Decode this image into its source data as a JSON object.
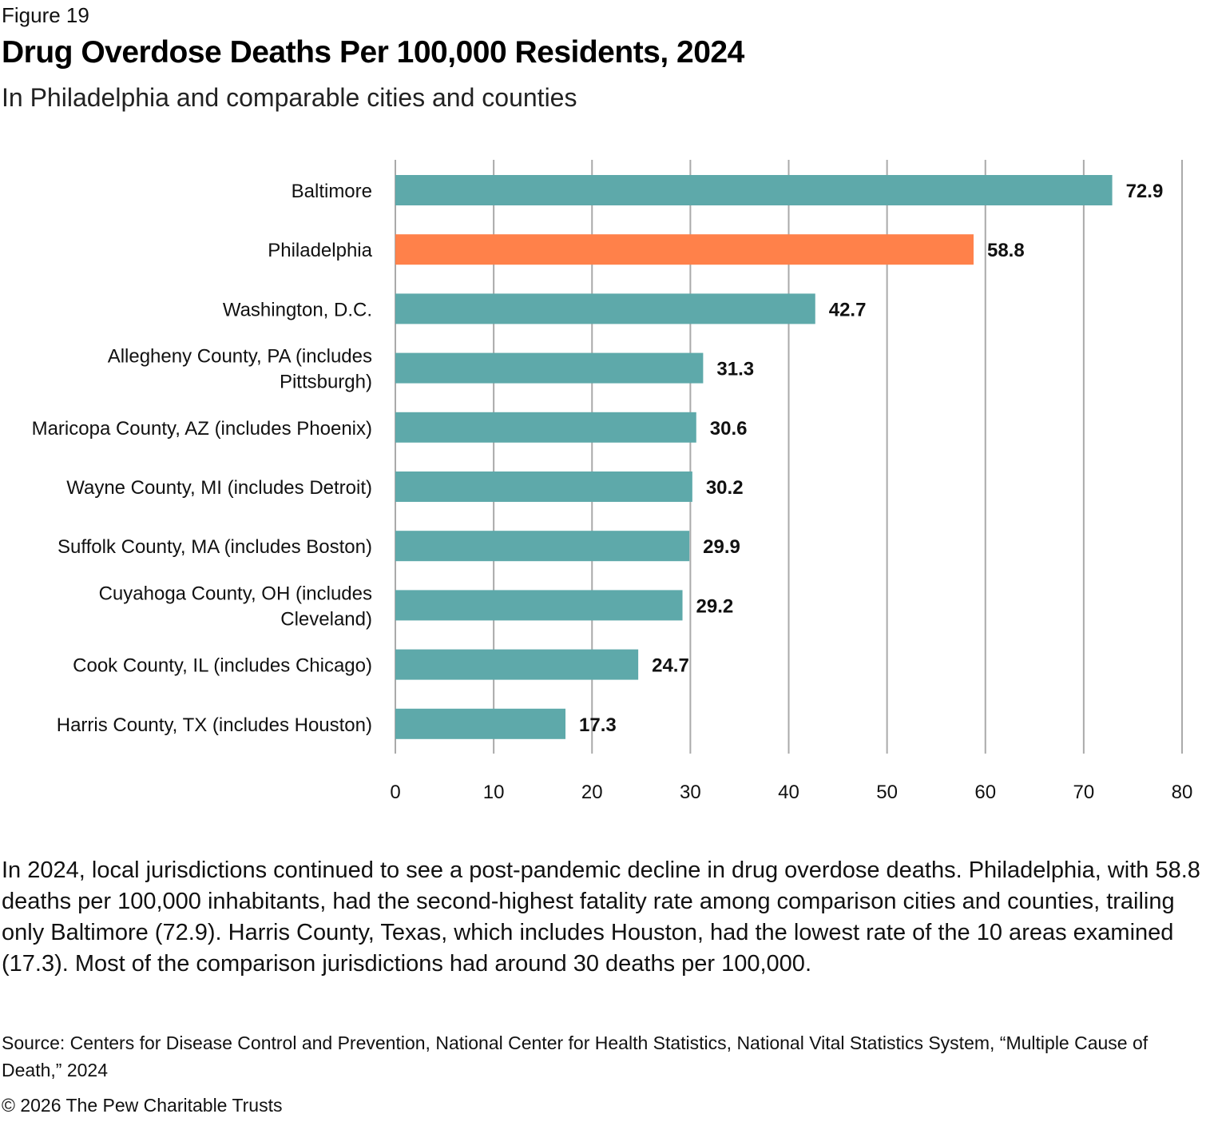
{
  "figure_label": "Figure 19",
  "title": "Drug Overdose Deaths Per 100,000 Residents, 2024",
  "subtitle": "In Philadelphia and comparable cities and counties",
  "chart_data": {
    "type": "bar",
    "orientation": "horizontal",
    "title": "Drug Overdose Deaths Per 100,000 Residents, 2024",
    "subtitle": "In Philadelphia and comparable cities and counties",
    "xlabel": "",
    "ylabel": "",
    "categories": [
      [
        "Baltimore"
      ],
      [
        "Philadelphia"
      ],
      [
        "Washington, D.C."
      ],
      [
        "Allegheny County, PA (includes",
        "Pittsburgh)"
      ],
      [
        "Maricopa County, AZ (includes Phoenix)"
      ],
      [
        "Wayne County, MI (includes Detroit)"
      ],
      [
        "Suffolk County, MA (includes Boston)"
      ],
      [
        "Cuyahoga County, OH (includes",
        "Cleveland)"
      ],
      [
        "Cook County, IL (includes Chicago)"
      ],
      [
        "Harris County, TX (includes Houston)"
      ]
    ],
    "values": [
      72.9,
      58.8,
      42.7,
      31.3,
      30.6,
      30.2,
      29.9,
      29.2,
      24.7,
      17.3
    ],
    "value_labels": [
      "72.9",
      "58.8",
      "42.7",
      "31.3",
      "30.6",
      "30.2",
      "29.9",
      "29.2",
      "24.7",
      "17.3"
    ],
    "highlight_index": 1,
    "colors": {
      "default": "#5ea9aa",
      "highlight": "#ff814a",
      "grid": "#aaaaaa"
    },
    "xlim": [
      0,
      80
    ],
    "xticks": [
      0,
      10,
      20,
      30,
      40,
      50,
      60,
      70,
      80
    ],
    "grid": true,
    "legend": "none"
  },
  "body_text": "In 2024, local jurisdictions continued to see a post-pandemic decline in drug overdose deaths. Philadelphia, with 58.8 deaths per 100,000 inhabitants, had the second-highest fatality rate among comparison cities and counties, trailing only Baltimore (72.9). Harris County, Texas, which includes Houston, had the lowest rate of the 10 areas examined (17.3). Most of the comparison jurisdictions had around 30 deaths per 100,000.",
  "source": "Source: Centers for Disease Control and Prevention, National Center for Health Statistics, National Vital Statistics System, “Multiple Cause of Death,” 2024",
  "copyright": "© 2026 The Pew Charitable Trusts"
}
